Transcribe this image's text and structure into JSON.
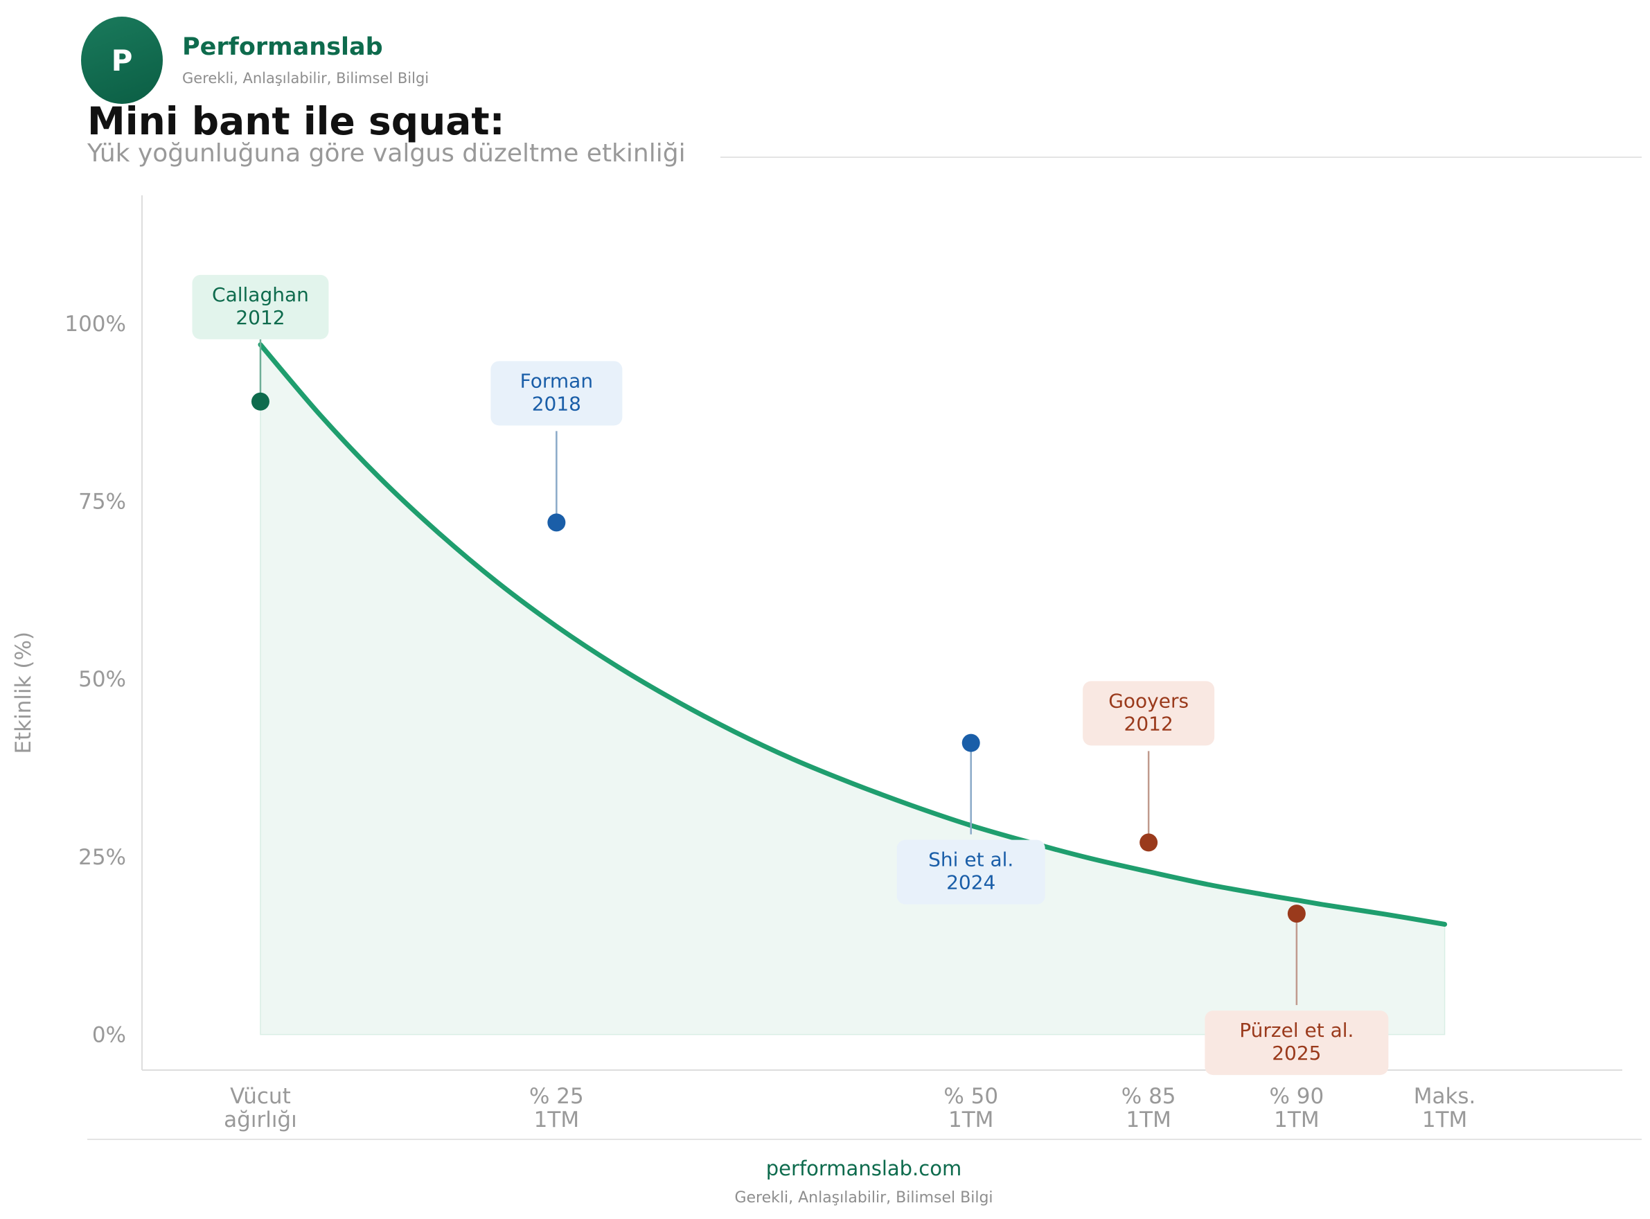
{
  "brand": {
    "logo_letter": "P",
    "name": "Performanslab",
    "tagline": "Gerekli, Anlaşılabilir, Bilimsel Bilgi"
  },
  "header": {
    "title": "Mini bant ile squat:",
    "subtitle": "Yük yoğunluğuna göre valgus düzeltme etkinliği"
  },
  "footer": {
    "url": "performanslab.com",
    "tagline": "Gerekli, Anlaşılabilir, Bilimsel Bilgi"
  },
  "colors": {
    "brand": "#0e6b4d",
    "curve": "#1f9e6e",
    "fill": "#eef7f3",
    "green_point": "#0e6b4d",
    "green_label_bg": "#e2f4ec",
    "blue_point": "#1a5ea8",
    "blue_label_bg": "#e8f1fa",
    "red_point": "#9a3a1c",
    "red_label_bg": "#f9e8e2",
    "axis_text": "#999999"
  },
  "chart_data": {
    "type": "line",
    "title": "Mini bant ile squat:",
    "subtitle": "Yük yoğunluğuna göre valgus düzeltme etkinliği",
    "ylabel": "Etkinlik (%)",
    "xlabel": "",
    "ylim": [
      -5,
      118
    ],
    "xlim": [
      -0.2,
      2.3
    ],
    "grid": false,
    "x_ticks": [
      {
        "x": 0,
        "label": "Vücut\nağırlığı"
      },
      {
        "x": 0.5,
        "label": "% 25\n1TM"
      },
      {
        "x": 1.2,
        "label": "% 50\n1TM"
      },
      {
        "x": 1.5,
        "label": "% 85\n1TM"
      },
      {
        "x": 1.75,
        "label": "% 90\n1TM"
      },
      {
        "x": 2.0,
        "label": "Maks.\n1TM"
      }
    ],
    "y_ticks": [
      {
        "y": 0,
        "label": "0%"
      },
      {
        "y": 25,
        "label": "25%"
      },
      {
        "y": 50,
        "label": "50%"
      },
      {
        "y": 75,
        "label": "75%"
      },
      {
        "y": 100,
        "label": "100%"
      }
    ],
    "curve": {
      "x": [
        0,
        0.1,
        0.2,
        0.3,
        0.4,
        0.5,
        0.6,
        0.7,
        0.8,
        0.9,
        1.0,
        1.1,
        1.2,
        1.3,
        1.4,
        1.5,
        1.6,
        1.7,
        1.75,
        1.8,
        1.9,
        2.0
      ],
      "y": [
        97,
        87.2,
        78.4,
        70.6,
        63.6,
        57.4,
        51.9,
        47.0,
        42.6,
        38.7,
        35.3,
        32.2,
        29.4,
        27.0,
        24.8,
        22.9,
        21.1,
        19.6,
        18.9,
        18.2,
        16.9,
        15.5
      ]
    },
    "studies": [
      {
        "label": "Callaghan\n2012",
        "x": 0,
        "y": 89,
        "group": "green",
        "label_pos": "above"
      },
      {
        "label": "Forman\n2018",
        "x": 0.5,
        "y": 72,
        "group": "blue",
        "label_pos": "above"
      },
      {
        "label": "Shi et al.\n2024",
        "x": 1.2,
        "y": 41,
        "group": "blue",
        "label_pos": "below"
      },
      {
        "label": "Gooyers\n2012",
        "x": 1.5,
        "y": 27,
        "group": "red",
        "label_pos": "above"
      },
      {
        "label": "Pürzel et al.\n2025",
        "x": 1.75,
        "y": 17,
        "group": "red",
        "label_pos": "below"
      }
    ]
  }
}
